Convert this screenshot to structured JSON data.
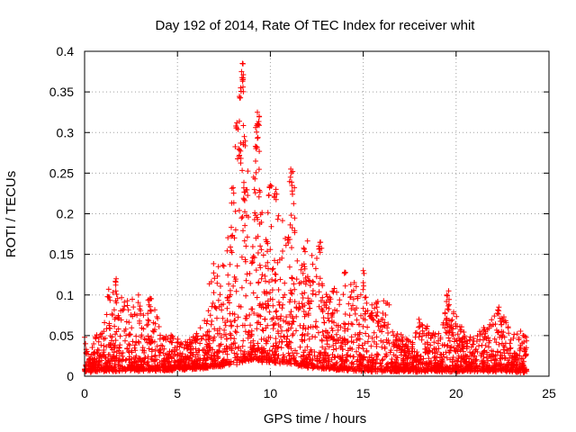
{
  "chart_data": {
    "type": "scatter",
    "title": "Day 192 of 2014, Rate Of TEC Index for receiver whit",
    "xlabel": "GPS time / hours",
    "ylabel": "ROTI / TECUs",
    "xlim": [
      0,
      25
    ],
    "ylim": [
      0,
      0.4
    ],
    "x_ticks": [
      0,
      5,
      10,
      15,
      20,
      25
    ],
    "x_tick_labels": [
      "0",
      "5",
      "10",
      "15",
      "20",
      "25"
    ],
    "y_ticks": [
      0,
      0.05,
      0.1,
      0.15,
      0.2,
      0.25,
      0.3,
      0.35,
      0.4
    ],
    "y_tick_labels": [
      "0",
      "0.05",
      "0.1",
      "0.15",
      "0.2",
      "0.25",
      "0.3",
      "0.35",
      "0.4"
    ],
    "grid": true,
    "marker": "+",
    "marker_color": "#ff0000",
    "envelope": {
      "x": [
        0.0,
        0.3,
        0.6,
        1.0,
        1.4,
        1.7,
        2.1,
        2.5,
        2.9,
        3.3,
        3.7,
        4.2,
        4.8,
        5.3,
        5.8,
        6.2,
        6.6,
        7.0,
        7.5,
        8.0,
        8.3,
        8.6,
        9.0,
        9.3,
        9.7,
        10.0,
        10.4,
        10.8,
        11.2,
        11.6,
        12.0,
        12.5,
        13.0,
        13.5,
        14.0,
        14.5,
        15.0,
        15.5,
        16.0,
        16.5,
        17.0,
        17.5,
        18.0,
        18.5,
        19.0,
        19.5,
        20.0,
        20.5,
        21.0,
        21.5,
        22.0,
        22.5,
        23.0,
        23.5,
        23.8
      ],
      "y": [
        0.04,
        0.03,
        0.05,
        0.06,
        0.1,
        0.12,
        0.09,
        0.1,
        0.08,
        0.09,
        0.1,
        0.05,
        0.05,
        0.04,
        0.05,
        0.06,
        0.1,
        0.15,
        0.14,
        0.23,
        0.38,
        0.3,
        0.22,
        0.32,
        0.18,
        0.24,
        0.22,
        0.19,
        0.25,
        0.16,
        0.17,
        0.14,
        0.1,
        0.12,
        0.1,
        0.13,
        0.11,
        0.09,
        0.1,
        0.06,
        0.05,
        0.05,
        0.07,
        0.06,
        0.05,
        0.1,
        0.08,
        0.05,
        0.05,
        0.06,
        0.08,
        0.08,
        0.05,
        0.06,
        0.05
      ]
    },
    "baseline": {
      "x": [
        0,
        2,
        4,
        6,
        8,
        9,
        10,
        11,
        12,
        13,
        14,
        16,
        18,
        20,
        22,
        24
      ],
      "y": [
        0.006,
        0.008,
        0.008,
        0.01,
        0.015,
        0.02,
        0.018,
        0.016,
        0.012,
        0.01,
        0.008,
        0.007,
        0.007,
        0.007,
        0.007,
        0.006
      ]
    },
    "cluster_peaks": [
      {
        "x": 8.5,
        "y": 0.385
      },
      {
        "x": 8.45,
        "y": 0.375
      },
      {
        "x": 8.5,
        "y": 0.365
      },
      {
        "x": 8.4,
        "y": 0.355
      },
      {
        "x": 9.3,
        "y": 0.325
      },
      {
        "x": 9.4,
        "y": 0.32
      },
      {
        "x": 9.35,
        "y": 0.31
      },
      {
        "x": 8.2,
        "y": 0.312
      },
      {
        "x": 8.6,
        "y": 0.295
      },
      {
        "x": 8.4,
        "y": 0.287
      },
      {
        "x": 8.3,
        "y": 0.28
      },
      {
        "x": 9.2,
        "y": 0.283
      },
      {
        "x": 11.1,
        "y": 0.255
      },
      {
        "x": 11.2,
        "y": 0.252
      },
      {
        "x": 9.1,
        "y": 0.245
      },
      {
        "x": 10.0,
        "y": 0.235
      },
      {
        "x": 10.3,
        "y": 0.23
      },
      {
        "x": 8.0,
        "y": 0.232
      },
      {
        "x": 12.7,
        "y": 0.165
      },
      {
        "x": 12.6,
        "y": 0.16
      },
      {
        "x": 15.0,
        "y": 0.13
      },
      {
        "x": 14.0,
        "y": 0.128
      },
      {
        "x": 16.3,
        "y": 0.09
      },
      {
        "x": 19.6,
        "y": 0.105
      },
      {
        "x": 19.5,
        "y": 0.1
      },
      {
        "x": 1.7,
        "y": 0.12
      },
      {
        "x": 1.3,
        "y": 0.107
      },
      {
        "x": 2.9,
        "y": 0.1
      },
      {
        "x": 3.5,
        "y": 0.095
      },
      {
        "x": 0.0,
        "y": 0.048
      },
      {
        "x": 22.3,
        "y": 0.085
      },
      {
        "x": 23.6,
        "y": 0.05
      },
      {
        "x": 18.0,
        "y": 0.07
      }
    ]
  }
}
